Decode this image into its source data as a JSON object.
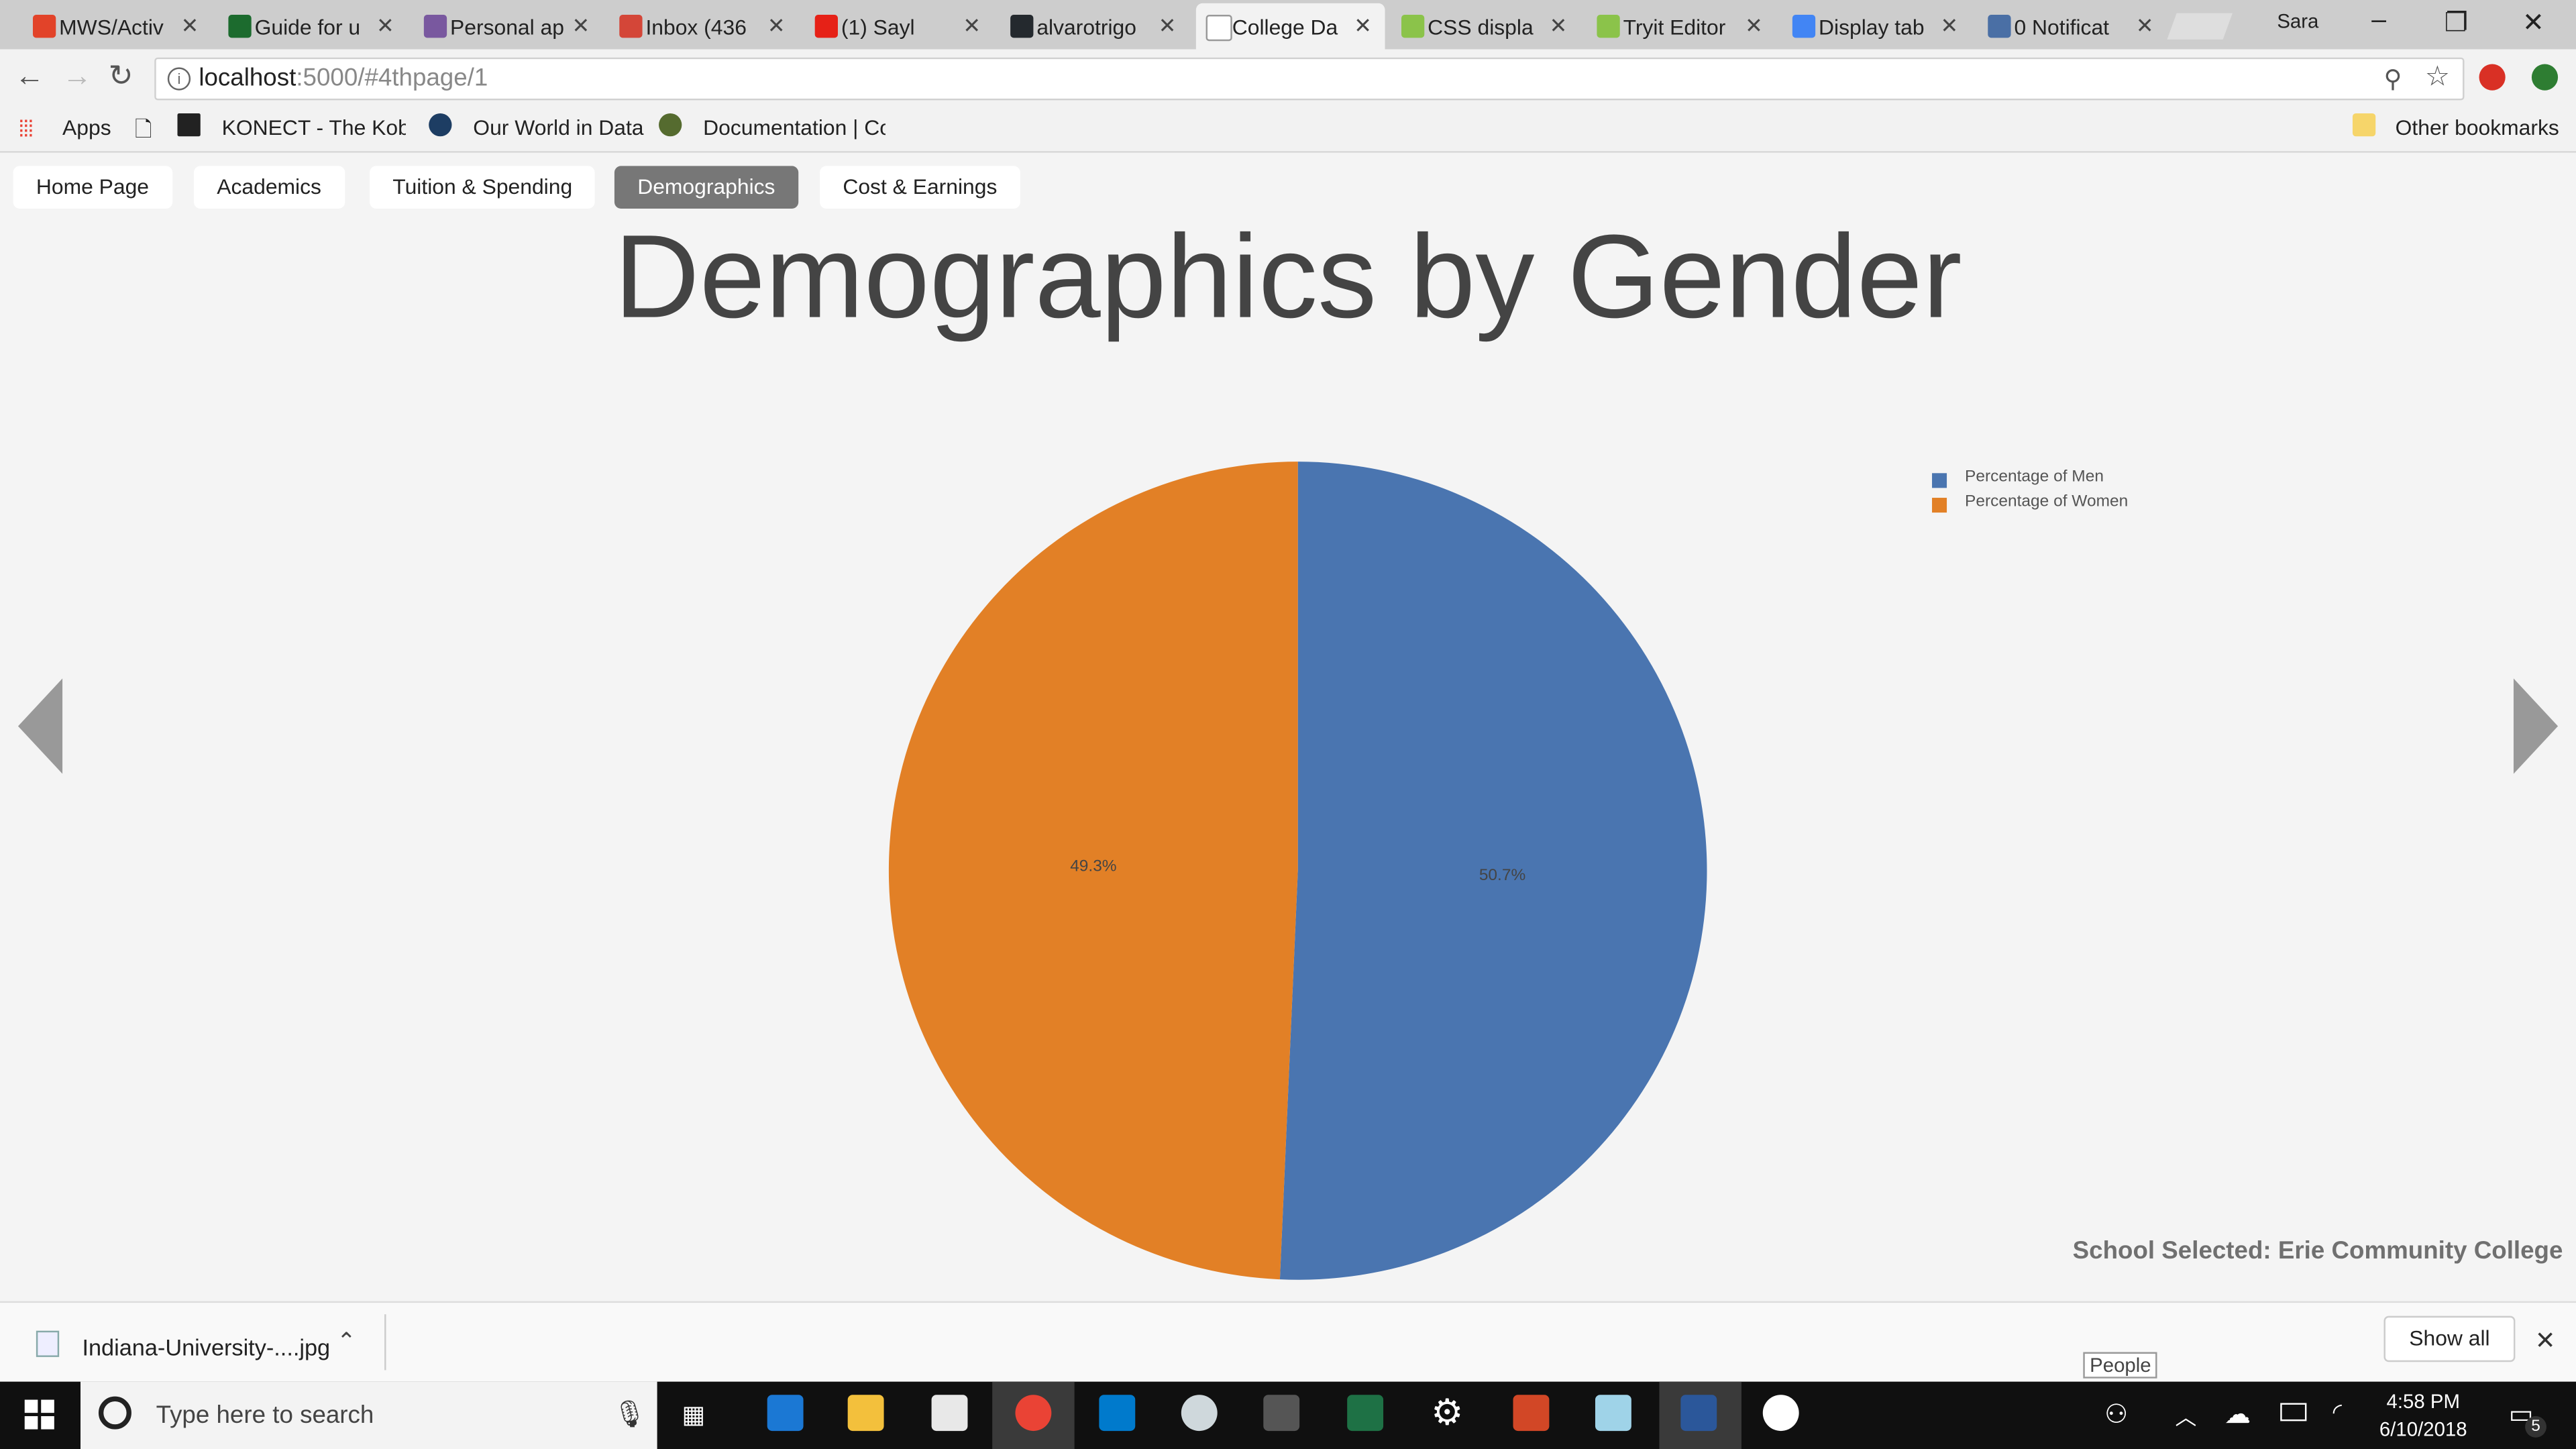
{
  "browser": {
    "tabs": [
      {
        "title": "MWS/Activ",
        "icon": "gitlab-icon",
        "color": "#e24329"
      },
      {
        "title": "Guide for u",
        "icon": "udacity-icon",
        "color": "#1c6b2e"
      },
      {
        "title": "Personal ap",
        "icon": "heroku-icon",
        "color": "#79589f"
      },
      {
        "title": "Inbox (436",
        "icon": "gmail-icon",
        "color": "#d44638"
      },
      {
        "title": "(1) Sayl",
        "icon": "youtube-icon",
        "color": "#e62117"
      },
      {
        "title": "alvarotrigo",
        "icon": "github-icon",
        "color": "#24292e"
      },
      {
        "title": "College Da",
        "icon": "page-icon",
        "color": "#ffffff"
      },
      {
        "title": "CSS displa",
        "icon": "w3schools-icon",
        "color": "#8bc34a"
      },
      {
        "title": "Tryit Editor",
        "icon": "w3schools-icon",
        "color": "#8bc34a"
      },
      {
        "title": "Display tab",
        "icon": "chart-icon",
        "color": "#4285f4"
      },
      {
        "title": "0 Notificat",
        "icon": "notification-icon",
        "color": "#4a6fa5"
      }
    ],
    "profile_name": "Sara",
    "url_host": "localhost",
    "url_path": ":5000/#4thpage/1",
    "bookmarks": [
      {
        "label": "Apps"
      },
      {
        "label": ""
      },
      {
        "label": "KONECT - The Koble"
      },
      {
        "label": "Our World in Data"
      },
      {
        "label": "Documentation | Co"
      }
    ],
    "other_bookmarks": "Other bookmarks"
  },
  "nav": {
    "items": [
      {
        "label": "Home Page",
        "active": false
      },
      {
        "label": "Academics",
        "active": false
      },
      {
        "label": "Tuition & Spending",
        "active": false
      },
      {
        "label": "Demographics",
        "active": true
      },
      {
        "label": "Cost & Earnings",
        "active": false
      }
    ]
  },
  "page": {
    "title": "Demographics by Gender",
    "school_selected": "School Selected: Erie Community College"
  },
  "chart_data": {
    "type": "pie",
    "title": "Demographics by Gender",
    "labels": [
      "Percentage of Men",
      "Percentage of Women"
    ],
    "values": [
      50.7,
      49.3
    ],
    "value_labels": [
      "50.7%",
      "49.3%"
    ],
    "colors": [
      "#4a75b0",
      "#e28026"
    ],
    "legend_position": "top-right"
  },
  "downloads": {
    "filename": "Indiana-University-....jpg",
    "show_all": "Show all"
  },
  "taskbar": {
    "search_placeholder": "Type here to search",
    "people_tooltip": "People",
    "time": "4:58 PM",
    "date": "6/10/2018",
    "notification_count": "5"
  }
}
